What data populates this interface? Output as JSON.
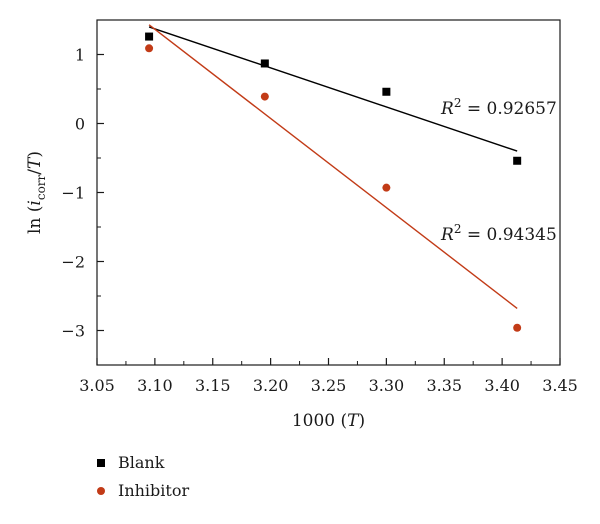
{
  "chart_data": {
    "type": "scatter",
    "xlabel": "1000 (T)",
    "ylabel": "ln (i_corr/T)",
    "xlim": [
      3.05,
      3.45
    ],
    "ylim": [
      -3.5,
      1.5
    ],
    "xticks": [
      "3.05",
      "3.10",
      "3.15",
      "3.20",
      "3.25",
      "3.30",
      "3.35",
      "3.40",
      "3.45"
    ],
    "yticks": [
      "1",
      "0",
      "−1",
      "−2",
      "−3"
    ],
    "series": [
      {
        "name": "Blank",
        "color": "#000000",
        "marker": "square",
        "x": [
          3.095,
          3.195,
          3.3,
          3.413
        ],
        "y": [
          1.26,
          0.87,
          0.46,
          -0.54
        ],
        "fit": {
          "x": [
            3.095,
            3.413
          ],
          "y": [
            1.4,
            -0.4
          ]
        },
        "r2_label": "R² = 0.92657"
      },
      {
        "name": "Inhibitor",
        "color": "#c23b17",
        "marker": "circle",
        "x": [
          3.095,
          3.195,
          3.3,
          3.413
        ],
        "y": [
          1.09,
          0.39,
          -0.93,
          -2.96
        ],
        "fit": {
          "x": [
            3.095,
            3.413
          ],
          "y": [
            1.43,
            -2.68
          ]
        },
        "r2_label": "R² = 0.94345"
      }
    ],
    "legend_position": "bottom-left",
    "grid": false
  }
}
